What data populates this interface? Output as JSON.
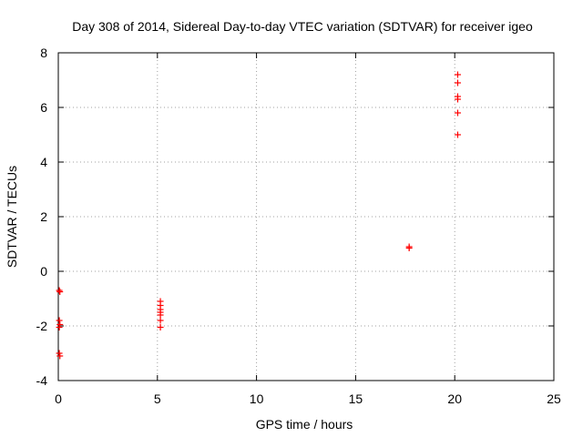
{
  "chart_data": {
    "type": "scatter",
    "title": "Day 308 of 2014, Sidereal Day-to-day VTEC variation (SDTVAR) for receiver igeo",
    "xlabel": "GPS time / hours",
    "ylabel": "SDTVAR / TECUs",
    "xlim": [
      0,
      25
    ],
    "ylim": [
      -4,
      8
    ],
    "xticks": [
      0,
      5,
      10,
      15,
      20,
      25
    ],
    "yticks": [
      -4,
      -2,
      0,
      2,
      4,
      6,
      8
    ],
    "xtick_labels": [
      "0",
      "5",
      "10",
      "15",
      "20",
      "25"
    ],
    "ytick_labels": [
      "-4",
      "-2",
      "0",
      "2",
      "4",
      "6",
      "8"
    ],
    "grid": true,
    "legend": "none",
    "marker": "plus",
    "color": "#ff0000",
    "points": [
      {
        "x": 0.05,
        "y": -0.7
      },
      {
        "x": 0.08,
        "y": -0.75
      },
      {
        "x": 0.05,
        "y": -1.8
      },
      {
        "x": 0.08,
        "y": -1.95
      },
      {
        "x": 0.05,
        "y": -2.05
      },
      {
        "x": 0.05,
        "y": -3.0
      },
      {
        "x": 0.08,
        "y": -3.1
      },
      {
        "x": 5.15,
        "y": -1.1
      },
      {
        "x": 5.15,
        "y": -1.25
      },
      {
        "x": 5.15,
        "y": -1.4
      },
      {
        "x": 5.15,
        "y": -1.5
      },
      {
        "x": 5.15,
        "y": -1.6
      },
      {
        "x": 5.15,
        "y": -1.8
      },
      {
        "x": 5.15,
        "y": -2.05
      },
      {
        "x": 17.7,
        "y": 0.85
      },
      {
        "x": 17.7,
        "y": 0.9
      },
      {
        "x": 20.15,
        "y": 7.2
      },
      {
        "x": 20.15,
        "y": 6.9
      },
      {
        "x": 20.15,
        "y": 6.4
      },
      {
        "x": 20.15,
        "y": 6.3
      },
      {
        "x": 20.15,
        "y": 5.8
      },
      {
        "x": 20.15,
        "y": 5.0
      }
    ]
  }
}
